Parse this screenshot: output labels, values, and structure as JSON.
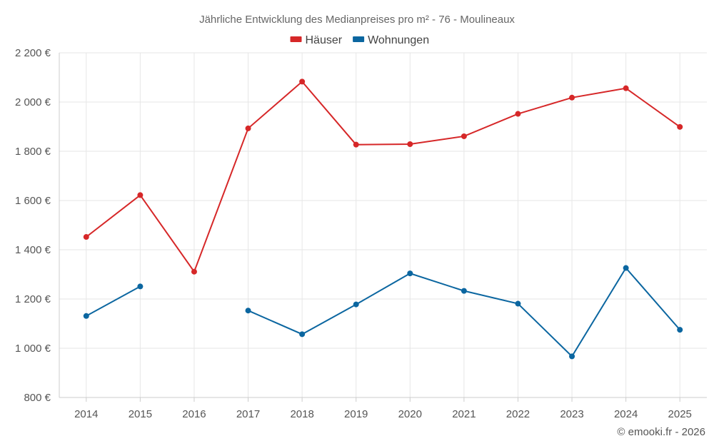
{
  "chart_data": {
    "type": "line",
    "title": "Jährliche Entwicklung des Medianpreises pro m² - 76 - Moulineaux",
    "categories": [
      "2014",
      "2015",
      "2016",
      "2017",
      "2018",
      "2019",
      "2020",
      "2021",
      "2022",
      "2023",
      "2024",
      "2025"
    ],
    "series": [
      {
        "name": "Häuser",
        "color": "#d62728",
        "values": [
          1452,
          1622,
          1311,
          1893,
          2083,
          1827,
          1829,
          1861,
          1952,
          2018,
          2056,
          1899
        ]
      },
      {
        "name": "Wohnungen",
        "color": "#0b66a0",
        "values": [
          1131,
          1251,
          null,
          1153,
          1057,
          1178,
          1304,
          1233,
          1181,
          967,
          1326,
          1075
        ]
      }
    ],
    "ylim": [
      800,
      2200
    ],
    "yticks": [
      {
        "value": 800,
        "label": "800 €"
      },
      {
        "value": 1000,
        "label": "1 000 €"
      },
      {
        "value": 1200,
        "label": "1 200 €"
      },
      {
        "value": 1400,
        "label": "1 400 €"
      },
      {
        "value": 1600,
        "label": "1 600 €"
      },
      {
        "value": 1800,
        "label": "1 800 €"
      },
      {
        "value": 2000,
        "label": "2 000 €"
      },
      {
        "value": 2200,
        "label": "2 200 €"
      }
    ],
    "grid": true,
    "legend": "top-center"
  },
  "footer": "© emooki.fr - 2026"
}
